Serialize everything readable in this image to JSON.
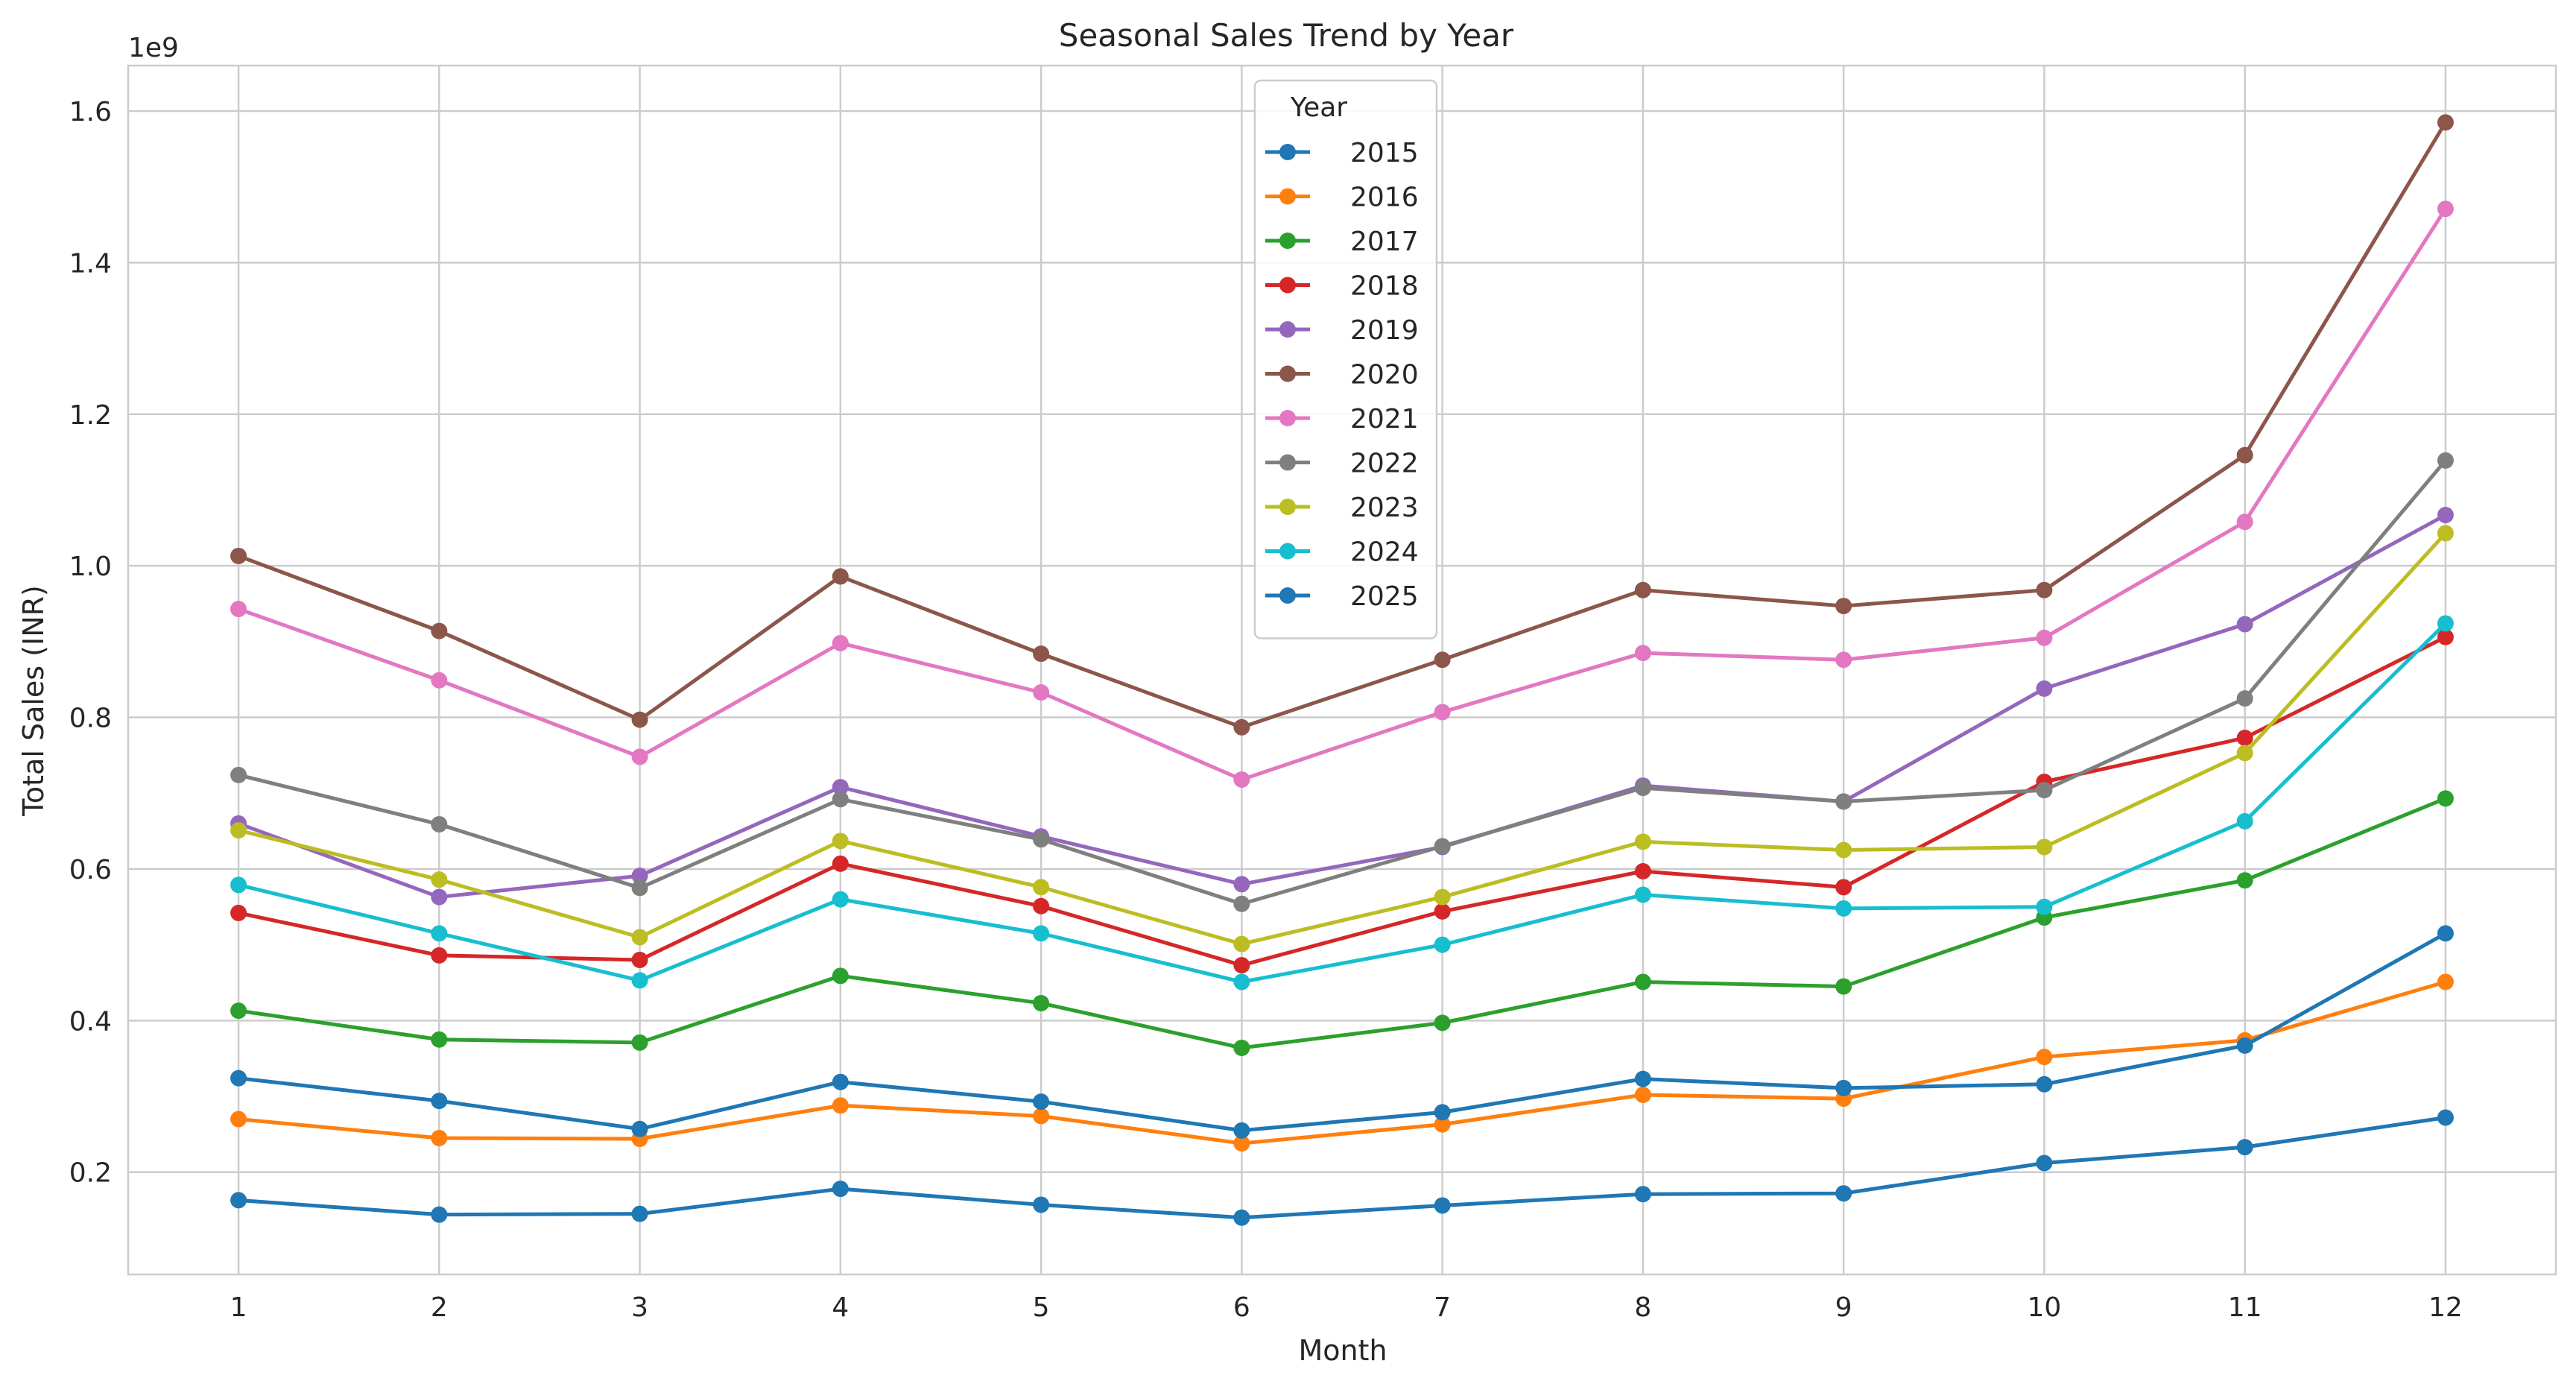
{
  "chart_data": {
    "type": "line",
    "title": "Seasonal Sales Trend by Year",
    "xlabel": "Month",
    "ylabel": "Total Sales (INR)",
    "y_offset_label": "1e9",
    "x": [
      1,
      2,
      3,
      4,
      5,
      6,
      7,
      8,
      9,
      10,
      11,
      12
    ],
    "x_tick_labels": [
      "1",
      "2",
      "3",
      "4",
      "5",
      "6",
      "7",
      "8",
      "9",
      "10",
      "11",
      "12"
    ],
    "y_ticks": [
      0.2,
      0.4,
      0.6,
      0.8,
      1.0,
      1.2,
      1.4,
      1.6
    ],
    "y_tick_labels": [
      "0.2",
      "0.4",
      "0.6",
      "0.8",
      "1.0",
      "1.2",
      "1.4",
      "1.6"
    ],
    "y_scale_note": "values in units of 1e9 INR",
    "xlim": [
      0.45,
      12.55
    ],
    "ylim": [
      0.065,
      1.66
    ],
    "grid": true,
    "legend": {
      "title": "Year",
      "placement": "upper-center"
    },
    "series": [
      {
        "name": "2015",
        "color": "#1f77b4",
        "values": [
          0.163,
          0.144,
          0.145,
          0.178,
          0.157,
          0.14,
          0.156,
          0.171,
          0.172,
          0.212,
          0.233,
          0.272
        ]
      },
      {
        "name": "2016",
        "color": "#ff7f0e",
        "values": [
          0.27,
          0.245,
          0.244,
          0.288,
          0.274,
          0.238,
          0.263,
          0.302,
          0.297,
          0.352,
          0.374,
          0.451
        ]
      },
      {
        "name": "2017",
        "color": "#2ca02c",
        "values": [
          0.413,
          0.375,
          0.371,
          0.459,
          0.423,
          0.364,
          0.397,
          0.451,
          0.445,
          0.536,
          0.585,
          0.693
        ]
      },
      {
        "name": "2018",
        "color": "#d62728",
        "values": [
          0.542,
          0.486,
          0.48,
          0.607,
          0.551,
          0.473,
          0.544,
          0.597,
          0.576,
          0.715,
          0.773,
          0.906
        ]
      },
      {
        "name": "2019",
        "color": "#9467bd",
        "values": [
          0.66,
          0.563,
          0.591,
          0.708,
          0.643,
          0.58,
          0.629,
          0.71,
          0.689,
          0.838,
          0.923,
          1.067
        ]
      },
      {
        "name": "2020",
        "color": "#8c564b",
        "values": [
          1.013,
          0.914,
          0.797,
          0.986,
          0.884,
          0.787,
          0.876,
          0.968,
          0.947,
          0.968,
          1.146,
          1.585
        ]
      },
      {
        "name": "2021",
        "color": "#e377c2",
        "values": [
          0.943,
          0.849,
          0.748,
          0.898,
          0.833,
          0.718,
          0.807,
          0.885,
          0.876,
          0.905,
          1.058,
          1.471
        ]
      },
      {
        "name": "2022",
        "color": "#7f7f7f",
        "values": [
          0.724,
          0.659,
          0.575,
          0.692,
          0.639,
          0.554,
          0.63,
          0.707,
          0.689,
          0.704,
          0.825,
          1.139
        ]
      },
      {
        "name": "2023",
        "color": "#bcbd22",
        "values": [
          0.651,
          0.586,
          0.51,
          0.637,
          0.576,
          0.501,
          0.563,
          0.636,
          0.625,
          0.629,
          0.753,
          1.043
        ]
      },
      {
        "name": "2024",
        "color": "#17becf",
        "values": [
          0.579,
          0.515,
          0.453,
          0.56,
          0.515,
          0.451,
          0.5,
          0.566,
          0.548,
          0.55,
          0.663,
          0.924
        ]
      },
      {
        "name": "2025",
        "color": "#1f77b4",
        "values": [
          0.324,
          0.294,
          0.257,
          0.319,
          0.293,
          0.255,
          0.279,
          0.323,
          0.311,
          0.316,
          0.367,
          0.515
        ]
      }
    ]
  }
}
